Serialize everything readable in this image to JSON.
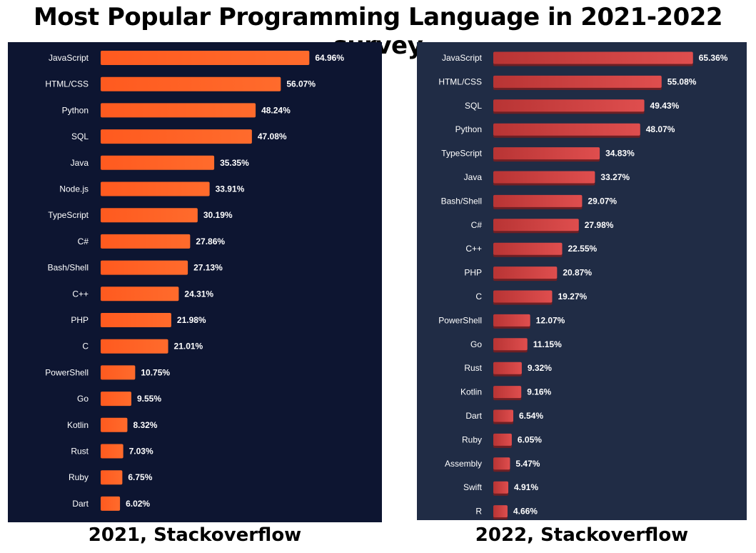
{
  "title": "Most Popular Programming Language in 2021-2022 survey",
  "colors": {
    "panel_2021_bg": "#0d1531",
    "panel_2022_bg": "#202c45",
    "bar_2021": "#ff5a1f",
    "bar_2022": "#cf3e3e"
  },
  "chart_data": [
    {
      "type": "bar",
      "orientation": "horizontal",
      "caption": "2021, Stackoverflow",
      "xlim": [
        0,
        100
      ],
      "grid": false,
      "categories": [
        "JavaScript",
        "HTML/CSS",
        "Python",
        "SQL",
        "Java",
        "Node.js",
        "TypeScript",
        "C#",
        "Bash/Shell",
        "C++",
        "PHP",
        "C",
        "PowerShell",
        "Go",
        "Kotlin",
        "Rust",
        "Ruby",
        "Dart"
      ],
      "values": [
        64.96,
        56.07,
        48.24,
        47.08,
        35.35,
        33.91,
        30.19,
        27.86,
        27.13,
        24.31,
        21.98,
        21.01,
        10.75,
        9.55,
        8.32,
        7.03,
        6.75,
        6.02
      ],
      "value_labels": [
        "64.96%",
        "56.07%",
        "48.24%",
        "47.08%",
        "35.35%",
        "33.91%",
        "30.19%",
        "27.86%",
        "27.13%",
        "24.31%",
        "21.98%",
        "21.01%",
        "10.75%",
        "9.55%",
        "8.32%",
        "7.03%",
        "6.75%",
        "6.02%"
      ]
    },
    {
      "type": "bar",
      "orientation": "horizontal",
      "caption": "2022, Stackoverflow",
      "xlim": [
        0,
        100
      ],
      "grid": false,
      "categories": [
        "JavaScript",
        "HTML/CSS",
        "SQL",
        "Python",
        "TypeScript",
        "Java",
        "Bash/Shell",
        "C#",
        "C++",
        "PHP",
        "C",
        "PowerShell",
        "Go",
        "Rust",
        "Kotlin",
        "Dart",
        "Ruby",
        "Assembly",
        "Swift",
        "R"
      ],
      "values": [
        65.36,
        55.08,
        49.43,
        48.07,
        34.83,
        33.27,
        29.07,
        27.98,
        22.55,
        20.87,
        19.27,
        12.07,
        11.15,
        9.32,
        9.16,
        6.54,
        6.05,
        5.47,
        4.91,
        4.66
      ],
      "value_labels": [
        "65.36%",
        "55.08%",
        "49.43%",
        "48.07%",
        "34.83%",
        "33.27%",
        "29.07%",
        "27.98%",
        "22.55%",
        "20.87%",
        "19.27%",
        "12.07%",
        "11.15%",
        "9.32%",
        "9.16%",
        "6.54%",
        "6.05%",
        "5.47%",
        "4.91%",
        "4.66%"
      ]
    }
  ]
}
